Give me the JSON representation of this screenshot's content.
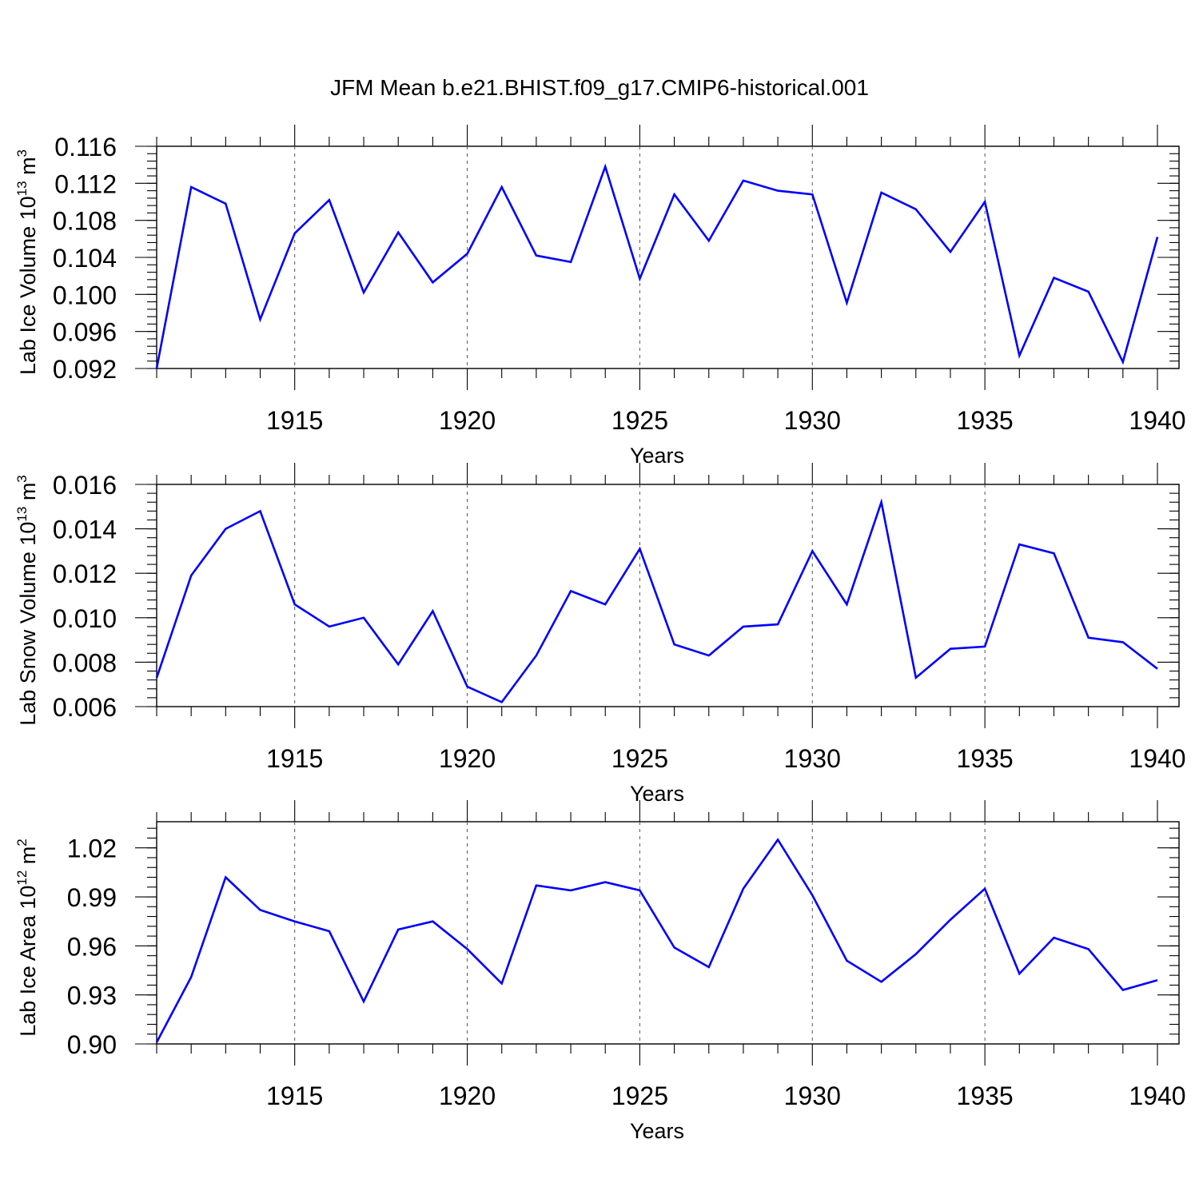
{
  "title": "JFM Mean b.e21.BHIST.f09_g17.CMIP6-historical.001",
  "colors": {
    "line": "#0000ff",
    "axis": "#000000"
  },
  "chart_data": [
    {
      "type": "line",
      "title": "",
      "xlabel": "Years",
      "ylabel": {
        "prefix": "Lab Ice Volume 10",
        "exp": "13",
        "unit": " m",
        "unit_exp": "3"
      },
      "xlim": [
        1911,
        1940
      ],
      "ylim": [
        0.092,
        0.116
      ],
      "xticks": [
        "1915",
        "1920",
        "1925",
        "1930",
        "1935",
        "1940"
      ],
      "yticks": [
        "0.092",
        "0.096",
        "0.100",
        "0.104",
        "0.108",
        "0.112",
        "0.116"
      ],
      "grid": "x-dashed",
      "x": [
        1911,
        1912,
        1913,
        1914,
        1915,
        1916,
        1917,
        1918,
        1919,
        1920,
        1921,
        1922,
        1923,
        1924,
        1925,
        1926,
        1927,
        1928,
        1929,
        1930,
        1931,
        1932,
        1933,
        1934,
        1935,
        1936,
        1937,
        1938,
        1939,
        1940
      ],
      "series": [
        {
          "values": [
            0.092,
            0.1116,
            0.1098,
            0.0973,
            0.1066,
            0.1102,
            0.1002,
            0.1067,
            0.1013,
            0.1044,
            0.1116,
            0.1042,
            0.1035,
            0.1138,
            0.1017,
            0.1108,
            0.1058,
            0.1123,
            0.1112,
            0.1108,
            0.0991,
            0.111,
            0.1092,
            0.1046,
            0.11,
            0.0934,
            0.1018,
            0.1003,
            0.0927,
            0.1062
          ]
        }
      ]
    },
    {
      "type": "line",
      "title": "",
      "xlabel": "Years",
      "ylabel": {
        "prefix": "Lab Snow Volume 10",
        "exp": "13",
        "unit": " m",
        "unit_exp": "3"
      },
      "xlim": [
        1911,
        1940
      ],
      "ylim": [
        0.006,
        0.016
      ],
      "xticks": [
        "1915",
        "1920",
        "1925",
        "1930",
        "1935",
        "1940"
      ],
      "yticks": [
        "0.006",
        "0.008",
        "0.010",
        "0.012",
        "0.014",
        "0.016"
      ],
      "grid": "x-dashed",
      "x": [
        1911,
        1912,
        1913,
        1914,
        1915,
        1916,
        1917,
        1918,
        1919,
        1920,
        1921,
        1922,
        1923,
        1924,
        1925,
        1926,
        1927,
        1928,
        1929,
        1930,
        1931,
        1932,
        1933,
        1934,
        1935,
        1936,
        1937,
        1938,
        1939,
        1940
      ],
      "series": [
        {
          "values": [
            0.0073,
            0.0119,
            0.014,
            0.0148,
            0.0106,
            0.0096,
            0.01,
            0.0079,
            0.0103,
            0.0069,
            0.0062,
            0.0083,
            0.0112,
            0.0106,
            0.0131,
            0.0088,
            0.0083,
            0.0096,
            0.0097,
            0.013,
            0.0106,
            0.0152,
            0.0073,
            0.0086,
            0.0087,
            0.0133,
            0.0129,
            0.0091,
            0.0089,
            0.0077
          ]
        }
      ]
    },
    {
      "type": "line",
      "title": "",
      "xlabel": "Years",
      "ylabel": {
        "prefix": "Lab Ice Area 10",
        "exp": "12",
        "unit": " m",
        "unit_exp": "2"
      },
      "xlim": [
        1911,
        1940
      ],
      "ylim": [
        0.9,
        1.036
      ],
      "xticks": [
        "1915",
        "1920",
        "1925",
        "1930",
        "1935",
        "1940"
      ],
      "yticks": [
        "0.90",
        "0.93",
        "0.96",
        "0.99",
        "1.02"
      ],
      "grid": "x-dashed",
      "x": [
        1911,
        1912,
        1913,
        1914,
        1915,
        1916,
        1917,
        1918,
        1919,
        1920,
        1921,
        1922,
        1923,
        1924,
        1925,
        1926,
        1927,
        1928,
        1929,
        1930,
        1931,
        1932,
        1933,
        1934,
        1935,
        1936,
        1937,
        1938,
        1939,
        1940
      ],
      "series": [
        {
          "values": [
            0.901,
            0.941,
            1.002,
            0.982,
            0.975,
            0.969,
            0.926,
            0.97,
            0.975,
            0.958,
            0.937,
            0.997,
            0.994,
            0.999,
            0.994,
            0.959,
            0.947,
            0.995,
            1.025,
            0.991,
            0.951,
            0.938,
            0.955,
            0.976,
            0.995,
            0.943,
            0.965,
            0.958,
            0.933,
            0.939
          ]
        }
      ]
    }
  ]
}
